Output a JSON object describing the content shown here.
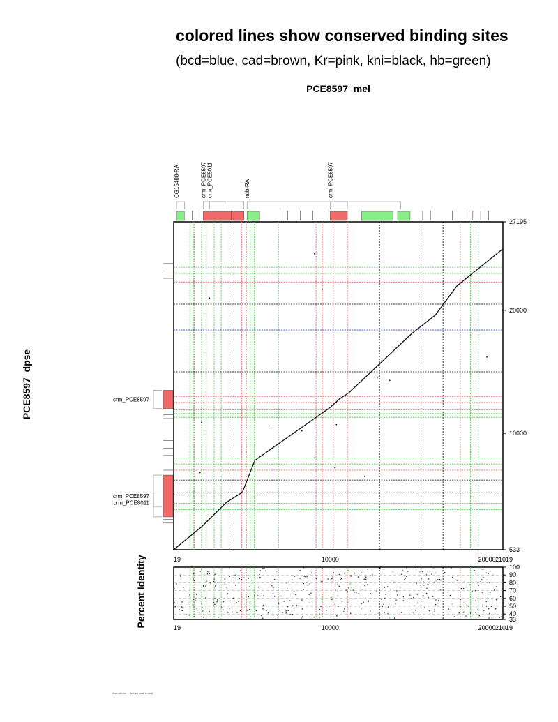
{
  "title": "colored lines show conserved binding sites",
  "subtitle": "(bcd=blue, cad=brown, Kr=pink, kni=black, hb=green)",
  "x_sequence": "PCE8597_mel",
  "y_sequence": "PCE8597_dpse",
  "identity_label": "Percent Identity",
  "footer": "Made with the ... (text too small to read)",
  "colors": {
    "bcd": "#2a3fd8",
    "cad": "#9b5a2a",
    "Kr": "#e85050",
    "kni": "#000000",
    "hb": "#3ec43e"
  },
  "chart_data": {
    "type": "scatter",
    "title": "colored lines show conserved binding sites",
    "subtitle": "(bcd=blue, cad=brown, Kr=pink, kni=black, hb=green)",
    "xlabel": "PCE8597_mel",
    "ylabel": "PCE8597_dpse",
    "xlim": [
      19,
      21019
    ],
    "ylim": [
      533,
      27195
    ],
    "x_ticks": [
      "19",
      "10000",
      "20000",
      "21019"
    ],
    "y_ticks": [
      "533",
      "10000",
      "20000",
      "27195"
    ],
    "x_annotations": [
      {
        "label": "CG15488-RA",
        "start": 200,
        "end": 700
      },
      {
        "label": "crm_PCE8597",
        "start": 1900,
        "end": 4500
      },
      {
        "label": "crm_PCE8011",
        "start": 2300,
        "end": 3300
      },
      {
        "label": "nub-RA",
        "start": 4700,
        "end": 14500
      },
      {
        "label": "crm_PCE8597",
        "start": 10000,
        "end": 11100
      }
    ],
    "y_annotations": [
      {
        "label": "crm_PCE8597",
        "start": 12000,
        "end": 13500
      },
      {
        "label": "crm_PCE8597",
        "start": 3200,
        "end": 6600
      },
      {
        "label": "crm_PCE8011",
        "start": 4000,
        "end": 5200
      }
    ],
    "exons_x": [
      [
        200,
        700
      ],
      [
        1900,
        4500
      ],
      [
        4700,
        5500
      ],
      [
        12000,
        14000
      ],
      [
        14300,
        15100
      ]
    ],
    "sites_x": {
      "bcd": [
        15800
      ],
      "cad": [],
      "Kr": [
        1300,
        4350,
        4650,
        9100,
        9500,
        10200,
        11100,
        18300
      ],
      "kni": [
        3550,
        13150,
        17200
      ],
      "hb": [
        1050,
        1350,
        1800,
        2100,
        2600,
        3050,
        4900,
        5150,
        6700,
        18950,
        19450
      ]
    },
    "sites_y": {
      "bcd": [
        18400
      ],
      "cad": [],
      "Kr": [
        7000,
        11900,
        12500,
        13000,
        22300
      ],
      "kni": [
        6200,
        5200,
        15000,
        20500
      ],
      "hb": [
        3800,
        4300,
        7500,
        8000,
        23000,
        23500,
        11300,
        11600
      ]
    },
    "alignment": {
      "x": [
        19,
        1800,
        3400,
        4400,
        5200,
        10000,
        10600,
        11200,
        13200,
        15200,
        16700,
        18100,
        21019
      ],
      "y": [
        533,
        2400,
        4400,
        5200,
        7800,
        12100,
        12800,
        13300,
        15700,
        18100,
        19600,
        22000,
        25000
      ]
    },
    "identity_ticks": [
      "100",
      "90",
      "80",
      "70",
      "60",
      "50",
      "40",
      "33"
    ],
    "identity_ylim": [
      33,
      100
    ]
  }
}
